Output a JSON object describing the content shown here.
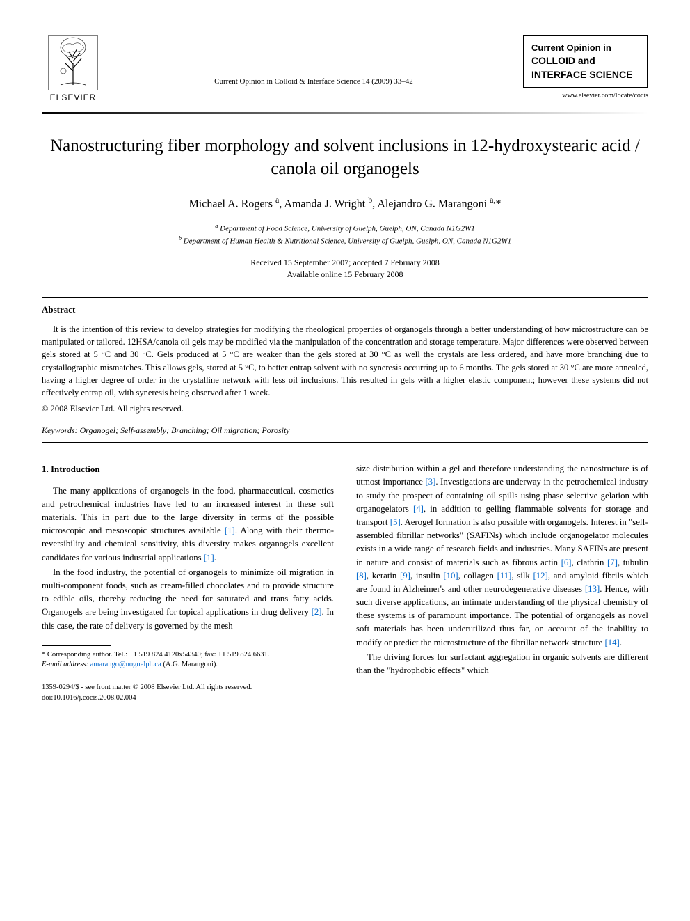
{
  "header": {
    "publisher": "ELSEVIER",
    "journal_ref": "Current Opinion in Colloid & Interface Science 14 (2009) 33–42",
    "journal_box": {
      "line1": "Current Opinion in",
      "line2": "COLLOID and",
      "line3": "INTERFACE SCIENCE"
    },
    "journal_url": "www.elsevier.com/locate/cocis"
  },
  "title": "Nanostructuring fiber morphology and solvent inclusions in 12-hydroxystearic acid / canola oil organogels",
  "authors_html": "Michael A. Rogers <sup>a</sup>, Amanda J. Wright <sup>b</sup>, Alejandro G. Marangoni <sup>a,</sup>*",
  "affiliations": {
    "a": "Department of Food Science, University of Guelph, Guelph, ON, Canada N1G2W1",
    "b": "Department of Human Health & Nutritional Science, University of Guelph, Guelph, ON, Canada N1G2W1"
  },
  "dates": {
    "received": "Received 15 September 2007; accepted 7 February 2008",
    "online": "Available online 15 February 2008"
  },
  "abstract": {
    "heading": "Abstract",
    "text": "It is the intention of this review to develop strategies for modifying the rheological properties of organogels through a better understanding of how microstructure can be manipulated or tailored. 12HSA/canola oil gels may be modified via the manipulation of the concentration and storage temperature. Major differences were observed between gels stored at 5 °C and 30 °C. Gels produced at 5 °C are weaker than the gels stored at 30 °C as well the crystals are less ordered, and have more branching due to crystallographic mismatches. This allows gels, stored at 5 °C, to better entrap solvent with no syneresis occurring up to 6 months. The gels stored at 30 °C are more annealed, having a higher degree of order in the crystalline network with less oil inclusions. This resulted in gels with a higher elastic component; however these systems did not effectively entrap oil, with syneresis being observed after 1 week.",
    "copyright": "© 2008 Elsevier Ltd. All rights reserved."
  },
  "keywords": {
    "label": "Keywords:",
    "list": "Organogel; Self-assembly; Branching; Oil migration; Porosity"
  },
  "body": {
    "section_heading": "1. Introduction",
    "col1_p1_a": "The many applications of organogels in the food, pharmaceutical, cosmetics and petrochemical industries have led to an increased interest in these soft materials. This in part due to the large diversity in terms of the possible microscopic and mesoscopic structures available ",
    "ref1a": "[1]",
    "col1_p1_b": ". Along with their thermo-reversibility and chemical sensitivity, this diversity makes organogels excellent candidates for various industrial applications ",
    "ref1b": "[1]",
    "col1_p1_c": ".",
    "col1_p2_a": "In the food industry, the potential of organogels to minimize oil migration in multi-component foods, such as cream-filled chocolates and to provide structure to edible oils, thereby reducing the need for saturated and trans fatty acids. Organogels are being investigated for topical applications in drug delivery ",
    "ref2": "[2]",
    "col1_p2_b": ". In this case, the rate of delivery is governed by the mesh",
    "col2_p1_a": "size distribution within a gel and therefore understanding the nanostructure is of utmost importance ",
    "ref3": "[3]",
    "col2_p1_b": ". Investigations are underway in the petrochemical industry to study the prospect of containing oil spills using phase selective gelation with organogelators ",
    "ref4": "[4]",
    "col2_p1_c": ", in addition to gelling flammable solvents for storage and transport ",
    "ref5": "[5]",
    "col2_p1_d": ". Aerogel formation is also possible with organogels. Interest in \"self-assembled fibrillar networks\" (SAFINs) which include organogelator molecules exists in a wide range of research fields and industries. Many SAFINs are present in nature and consist of materials such as fibrous actin ",
    "ref6": "[6]",
    "col2_p1_e": ", clathrin ",
    "ref7": "[7]",
    "col2_p1_f": ", tubulin ",
    "ref8": "[8]",
    "col2_p1_g": ", keratin ",
    "ref9": "[9]",
    "col2_p1_h": ", insulin ",
    "ref10": "[10]",
    "col2_p1_i": ", collagen ",
    "ref11": "[11]",
    "col2_p1_j": ", silk ",
    "ref12": "[12]",
    "col2_p1_k": ", and amyloid fibrils which are found in Alzheimer's and other neurodegenerative diseases ",
    "ref13": "[13]",
    "col2_p1_l": ". Hence, with such diverse applications, an intimate understanding of the physical chemistry of these systems is of paramount importance. The potential of organogels as novel soft materials has been underutilized thus far, on account of the inability to modify or predict the microstructure of the fibrillar network structure ",
    "ref14": "[14]",
    "col2_p1_m": ".",
    "col2_p2": "The driving forces for surfactant aggregation in organic solvents are different than the \"hydrophobic effects\" which"
  },
  "footnote": {
    "corresponding": "* Corresponding author. Tel.: +1 519 824 4120x54340; fax: +1 519 824 6631.",
    "email_label": "E-mail address:",
    "email": "amarango@uoguelph.ca",
    "email_suffix": "(A.G. Marangoni)."
  },
  "bottom": {
    "issn": "1359-0294/$ - see front matter © 2008 Elsevier Ltd. All rights reserved.",
    "doi": "doi:10.1016/j.cocis.2008.02.004"
  },
  "style": {
    "link_color": "#0066cc",
    "text_color": "#000000",
    "background": "#ffffff"
  }
}
